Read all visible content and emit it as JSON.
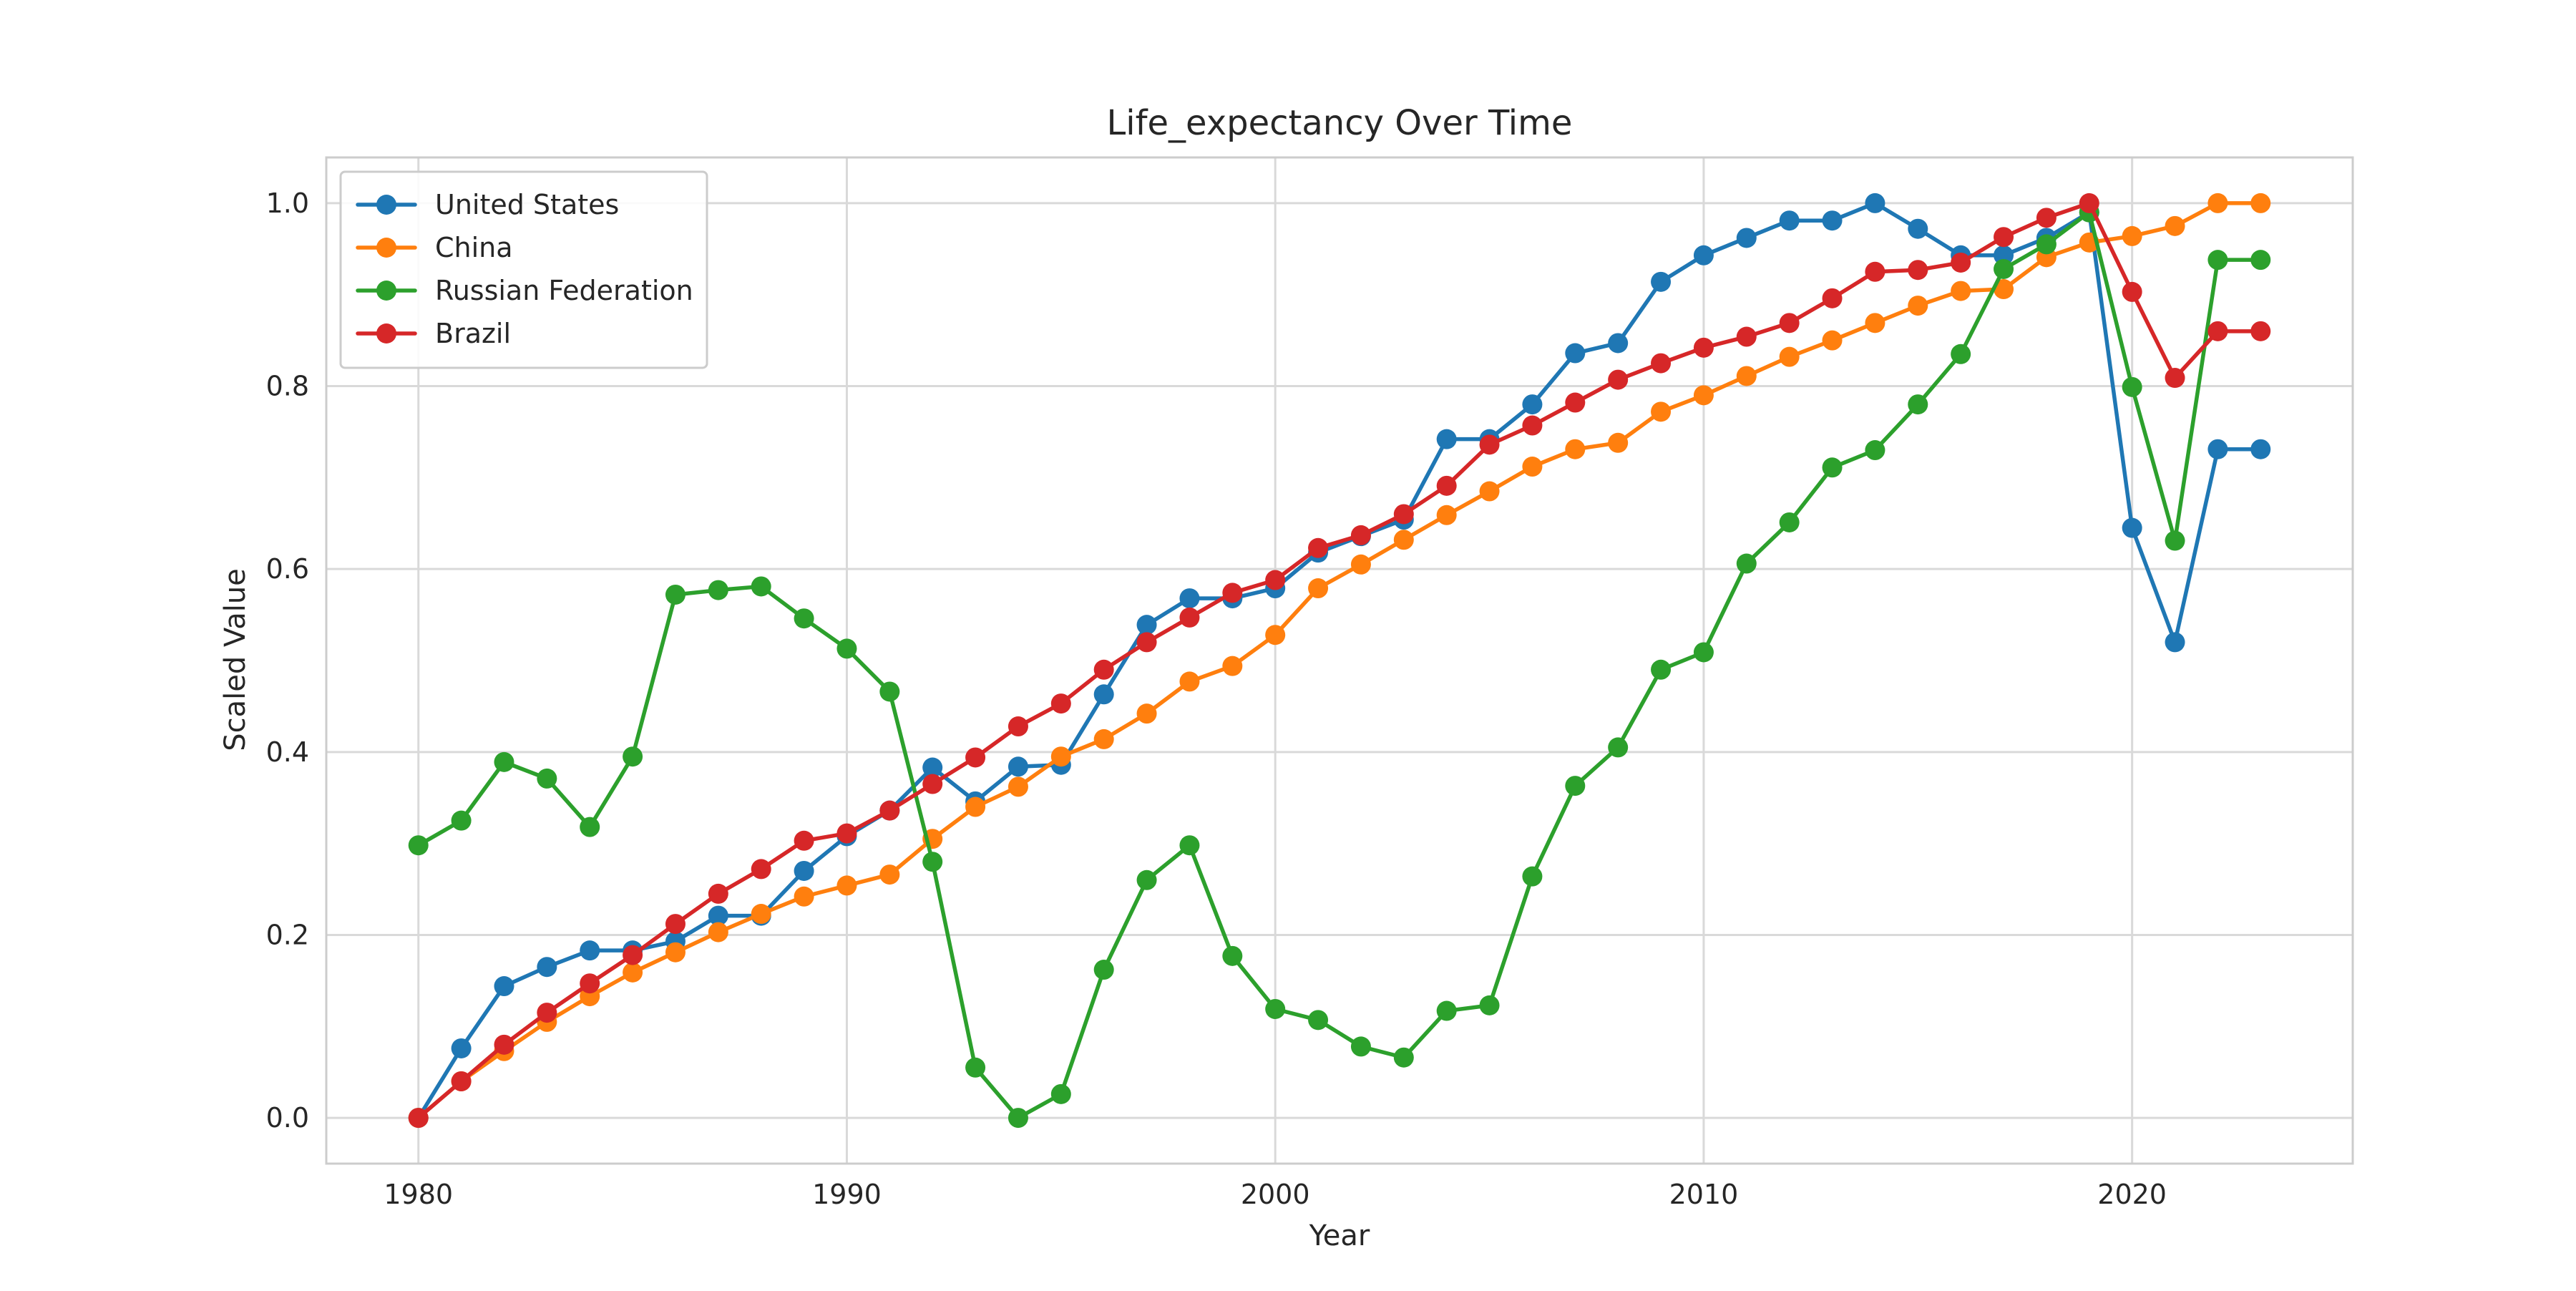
{
  "chart_data": {
    "type": "line",
    "title": "Life_expectancy Over Time",
    "xlabel": "Year",
    "ylabel": "Scaled Value",
    "x": [
      1980,
      1981,
      1982,
      1983,
      1984,
      1985,
      1986,
      1987,
      1988,
      1989,
      1990,
      1991,
      1992,
      1993,
      1994,
      1995,
      1996,
      1997,
      1998,
      1999,
      2000,
      2001,
      2002,
      2003,
      2004,
      2005,
      2006,
      2007,
      2008,
      2009,
      2010,
      2011,
      2012,
      2013,
      2014,
      2015,
      2016,
      2017,
      2018,
      2019,
      2020,
      2021,
      2022,
      2023
    ],
    "xlim": [
      1977.85,
      2025.15
    ],
    "ylim": [
      -0.05,
      1.05
    ],
    "xticks": [
      1980,
      1990,
      2000,
      2010,
      2020
    ],
    "xtick_labels": [
      "1980",
      "1990",
      "2000",
      "2010",
      "2020"
    ],
    "yticks": [
      0.0,
      0.2,
      0.4,
      0.6,
      0.8,
      1.0
    ],
    "ytick_labels": [
      "0.0",
      "0.2",
      "0.4",
      "0.6",
      "0.8",
      "1.0"
    ],
    "grid": true,
    "legend_position": "upper-left",
    "series": [
      {
        "name": "United States",
        "color": "#1f77b4",
        "values": [
          0.0,
          0.076,
          0.144,
          0.165,
          0.183,
          0.183,
          0.193,
          0.221,
          0.221,
          0.27,
          0.308,
          0.336,
          0.383,
          0.346,
          0.384,
          0.386,
          0.463,
          0.539,
          0.568,
          0.568,
          0.579,
          0.618,
          0.636,
          0.654,
          0.742,
          0.742,
          0.78,
          0.836,
          0.847,
          0.914,
          0.943,
          0.962,
          0.981,
          0.981,
          1.0,
          0.972,
          0.943,
          0.943,
          0.962,
          0.99,
          0.645,
          0.52,
          0.731,
          0.731
        ]
      },
      {
        "name": "China",
        "color": "#ff7f0e",
        "values": [
          0.0,
          0.04,
          0.073,
          0.105,
          0.133,
          0.159,
          0.181,
          0.203,
          0.223,
          0.242,
          0.254,
          0.266,
          0.305,
          0.34,
          0.362,
          0.395,
          0.414,
          0.442,
          0.477,
          0.494,
          0.528,
          0.579,
          0.605,
          0.632,
          0.659,
          0.685,
          0.712,
          0.731,
          0.738,
          0.772,
          0.79,
          0.811,
          0.832,
          0.85,
          0.869,
          0.888,
          0.904,
          0.906,
          0.941,
          0.957,
          0.964,
          0.975,
          1.0,
          1.0
        ]
      },
      {
        "name": "Russian Federation",
        "color": "#2ca02c",
        "values": [
          0.298,
          0.325,
          0.389,
          0.371,
          0.318,
          0.395,
          0.572,
          0.577,
          0.581,
          0.546,
          0.513,
          0.466,
          0.28,
          0.055,
          0.0,
          0.026,
          0.162,
          0.26,
          0.298,
          0.177,
          0.119,
          0.107,
          0.078,
          0.066,
          0.117,
          0.123,
          0.264,
          0.363,
          0.405,
          0.49,
          0.509,
          0.606,
          0.651,
          0.711,
          0.73,
          0.78,
          0.835,
          0.928,
          0.955,
          0.99,
          0.799,
          0.631,
          0.938,
          0.938
        ]
      },
      {
        "name": "Brazil",
        "color": "#d62728",
        "values": [
          0.0,
          0.04,
          0.08,
          0.115,
          0.147,
          0.178,
          0.212,
          0.245,
          0.272,
          0.303,
          0.311,
          0.336,
          0.365,
          0.394,
          0.428,
          0.453,
          0.49,
          0.52,
          0.547,
          0.574,
          0.588,
          0.623,
          0.637,
          0.66,
          0.691,
          0.736,
          0.757,
          0.782,
          0.807,
          0.825,
          0.842,
          0.854,
          0.869,
          0.896,
          0.925,
          0.927,
          0.935,
          0.963,
          0.984,
          1.0,
          0.903,
          0.809,
          0.86,
          0.86
        ]
      }
    ]
  }
}
